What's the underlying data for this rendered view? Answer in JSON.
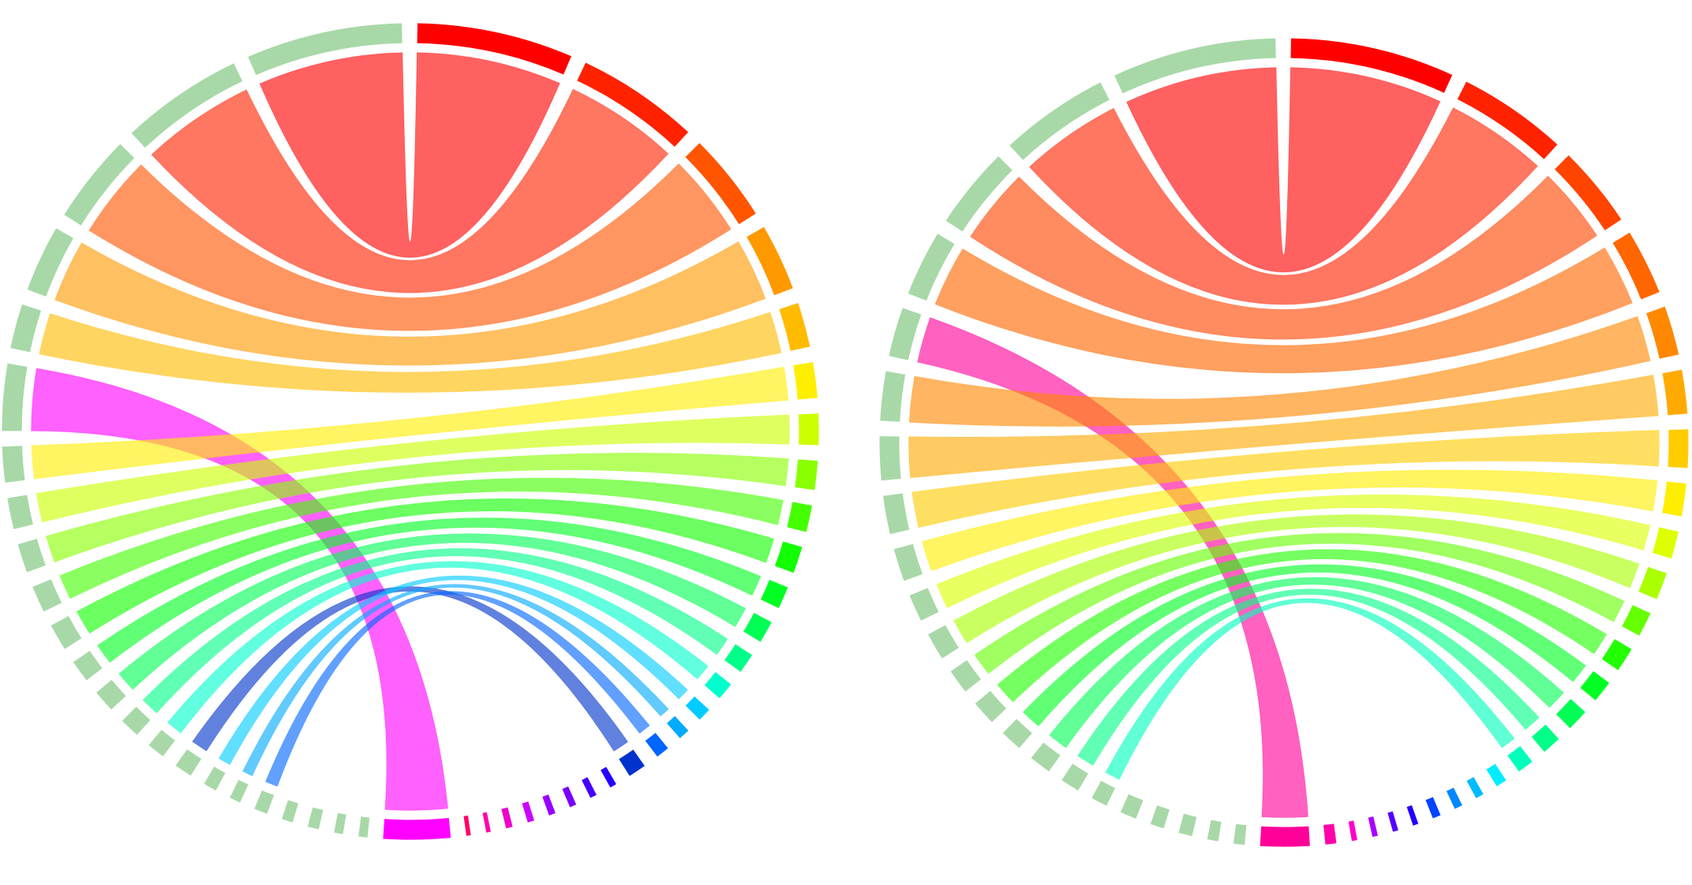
{
  "chart_data": [
    {
      "type": "chord",
      "groups": [
        {
          "color": "#ff0000",
          "value": 70
        },
        {
          "color": "#ff2200",
          "value": 55
        },
        {
          "color": "#ff5500",
          "value": 40
        },
        {
          "color": "#ff9900",
          "value": 30
        },
        {
          "color": "#ffbb00",
          "value": 20
        },
        {
          "color": "#ffee00",
          "value": 16
        },
        {
          "color": "#ccff00",
          "value": 14
        },
        {
          "color": "#88ff00",
          "value": 13
        },
        {
          "color": "#44ff00",
          "value": 12
        },
        {
          "color": "#11ff00",
          "value": 12
        },
        {
          "color": "#00ff22",
          "value": 10
        },
        {
          "color": "#00ff55",
          "value": 10
        },
        {
          "color": "#00ff88",
          "value": 9
        },
        {
          "color": "#00ffcc",
          "value": 8
        },
        {
          "color": "#00ccff",
          "value": 6
        },
        {
          "color": "#00aaff",
          "value": 5
        },
        {
          "color": "#0066ff",
          "value": 6
        },
        {
          "color": "#0033cc",
          "value": 8
        },
        {
          "color": "#2200ff",
          "value": 3
        },
        {
          "color": "#4400ff",
          "value": 3
        },
        {
          "color": "#7700ff",
          "value": 3
        },
        {
          "color": "#9900ff",
          "value": 3
        },
        {
          "color": "#cc00ff",
          "value": 3
        },
        {
          "color": "#ee00cc",
          "value": 3
        },
        {
          "color": "#ff00aa",
          "value": 2
        },
        {
          "color": "#ff0066",
          "value": 2
        },
        {
          "color": "#ff00ff",
          "value": 30
        },
        {
          "color": "#a8d8a8",
          "value": 4
        },
        {
          "color": "#a8d8a8",
          "value": 4
        },
        {
          "color": "#a8d8a8",
          "value": 5
        },
        {
          "color": "#a8d8a8",
          "value": 5
        },
        {
          "color": "#a8d8a8",
          "value": 6
        },
        {
          "color": "#a8d8a8",
          "value": 5
        },
        {
          "color": "#a8d8a8",
          "value": 6
        },
        {
          "color": "#a8d8a8",
          "value": 8
        },
        {
          "color": "#a8d8a8",
          "value": 8
        },
        {
          "color": "#a8d8a8",
          "value": 9
        },
        {
          "color": "#a8d8a8",
          "value": 10
        },
        {
          "color": "#a8d8a8",
          "value": 10
        },
        {
          "color": "#a8d8a8",
          "value": 12
        },
        {
          "color": "#a8d8a8",
          "value": 12
        },
        {
          "color": "#a8d8a8",
          "value": 13
        },
        {
          "color": "#a8d8a8",
          "value": 14
        },
        {
          "color": "#a8d8a8",
          "value": 16
        },
        {
          "color": "#a8d8a8",
          "value": 30
        },
        {
          "color": "#a8d8a8",
          "value": 20
        },
        {
          "color": "#a8d8a8",
          "value": 30
        },
        {
          "color": "#a8d8a8",
          "value": 40
        },
        {
          "color": "#a8d8a8",
          "value": 55
        },
        {
          "color": "#a8d8a8",
          "value": 70
        }
      ],
      "links": [
        {
          "source": 49,
          "target": 0,
          "value": 70
        },
        {
          "source": 48,
          "target": 1,
          "value": 55
        },
        {
          "source": 47,
          "target": 2,
          "value": 40
        },
        {
          "source": 46,
          "target": 3,
          "value": 30
        },
        {
          "source": 45,
          "target": 4,
          "value": 20
        },
        {
          "source": 44,
          "target": 26,
          "value": 30
        },
        {
          "source": 43,
          "target": 5,
          "value": 16
        },
        {
          "source": 42,
          "target": 6,
          "value": 14
        },
        {
          "source": 41,
          "target": 7,
          "value": 13
        },
        {
          "source": 40,
          "target": 8,
          "value": 12
        },
        {
          "source": 39,
          "target": 9,
          "value": 12
        },
        {
          "source": 38,
          "target": 10,
          "value": 10
        },
        {
          "source": 37,
          "target": 11,
          "value": 10
        },
        {
          "source": 36,
          "target": 12,
          "value": 9
        },
        {
          "source": 35,
          "target": 13,
          "value": 8
        },
        {
          "source": 34,
          "target": 17,
          "value": 8
        },
        {
          "source": 33,
          "target": 14,
          "value": 6
        },
        {
          "source": 32,
          "target": 15,
          "value": 5
        },
        {
          "source": 31,
          "target": 16,
          "value": 6
        }
      ]
    },
    {
      "type": "chord",
      "groups": [
        {
          "color": "#ff0000",
          "value": 60
        },
        {
          "color": "#ff2200",
          "value": 40
        },
        {
          "color": "#ff4400",
          "value": 30
        },
        {
          "color": "#ff6600",
          "value": 24
        },
        {
          "color": "#ff8800",
          "value": 18
        },
        {
          "color": "#ffaa00",
          "value": 16
        },
        {
          "color": "#ffcc00",
          "value": 14
        },
        {
          "color": "#ffee00",
          "value": 12
        },
        {
          "color": "#ddff00",
          "value": 10
        },
        {
          "color": "#aaff00",
          "value": 10
        },
        {
          "color": "#66ff00",
          "value": 9
        },
        {
          "color": "#22ff00",
          "value": 9
        },
        {
          "color": "#00ff22",
          "value": 8
        },
        {
          "color": "#00ff55",
          "value": 8
        },
        {
          "color": "#00ff88",
          "value": 7
        },
        {
          "color": "#00ffbb",
          "value": 6
        },
        {
          "color": "#00eeff",
          "value": 4
        },
        {
          "color": "#00bbff",
          "value": 3
        },
        {
          "color": "#0088ff",
          "value": 3
        },
        {
          "color": "#0044ff",
          "value": 3
        },
        {
          "color": "#2200ff",
          "value": 2
        },
        {
          "color": "#5500ff",
          "value": 2
        },
        {
          "color": "#aa00ff",
          "value": 2
        },
        {
          "color": "#ff00cc",
          "value": 2
        },
        {
          "color": "#ff00aa",
          "value": 4
        },
        {
          "color": "#ff0099",
          "value": 18
        },
        {
          "color": "#a8d8a8",
          "value": 4
        },
        {
          "color": "#a8d8a8",
          "value": 4
        },
        {
          "color": "#a8d8a8",
          "value": 5
        },
        {
          "color": "#a8d8a8",
          "value": 5
        },
        {
          "color": "#a8d8a8",
          "value": 6
        },
        {
          "color": "#a8d8a8",
          "value": 6
        },
        {
          "color": "#a8d8a8",
          "value": 7
        },
        {
          "color": "#a8d8a8",
          "value": 8
        },
        {
          "color": "#a8d8a8",
          "value": 8
        },
        {
          "color": "#a8d8a8",
          "value": 9
        },
        {
          "color": "#a8d8a8",
          "value": 9
        },
        {
          "color": "#a8d8a8",
          "value": 10
        },
        {
          "color": "#a8d8a8",
          "value": 10
        },
        {
          "color": "#a8d8a8",
          "value": 12
        },
        {
          "color": "#a8d8a8",
          "value": 14
        },
        {
          "color": "#a8d8a8",
          "value": 16
        },
        {
          "color": "#a8d8a8",
          "value": 18
        },
        {
          "color": "#a8d8a8",
          "value": 18
        },
        {
          "color": "#a8d8a8",
          "value": 24
        },
        {
          "color": "#a8d8a8",
          "value": 30
        },
        {
          "color": "#a8d8a8",
          "value": 40
        },
        {
          "color": "#a8d8a8",
          "value": 60
        }
      ],
      "links": [
        {
          "source": 47,
          "target": 0,
          "value": 60
        },
        {
          "source": 46,
          "target": 1,
          "value": 40
        },
        {
          "source": 45,
          "target": 2,
          "value": 30
        },
        {
          "source": 44,
          "target": 3,
          "value": 24
        },
        {
          "source": 43,
          "target": 25,
          "value": 18
        },
        {
          "source": 42,
          "target": 4,
          "value": 18
        },
        {
          "source": 41,
          "target": 5,
          "value": 16
        },
        {
          "source": 40,
          "target": 6,
          "value": 14
        },
        {
          "source": 39,
          "target": 7,
          "value": 12
        },
        {
          "source": 38,
          "target": 8,
          "value": 10
        },
        {
          "source": 37,
          "target": 9,
          "value": 10
        },
        {
          "source": 36,
          "target": 10,
          "value": 9
        },
        {
          "source": 35,
          "target": 11,
          "value": 9
        },
        {
          "source": 34,
          "target": 12,
          "value": 8
        },
        {
          "source": 33,
          "target": 13,
          "value": 8
        },
        {
          "source": 32,
          "target": 14,
          "value": 7
        },
        {
          "source": 31,
          "target": 15,
          "value": 6
        }
      ]
    }
  ]
}
